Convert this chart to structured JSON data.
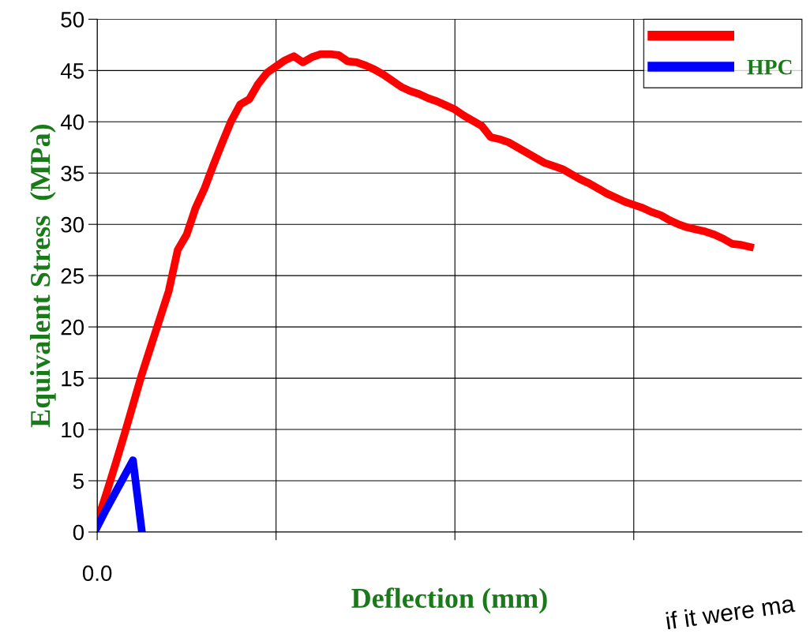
{
  "chart_data": {
    "type": "line",
    "xlabel": "Deflection (mm)",
    "ylabel": "Equivalent Stress  (MPa)",
    "categories": [
      "0.0",
      null,
      null,
      null,
      null,
      null,
      null,
      null,
      null,
      null,
      null,
      null,
      null,
      null,
      null,
      null,
      null,
      null,
      null,
      null,
      null,
      null,
      null,
      null,
      null,
      null,
      null,
      null,
      null,
      null,
      null,
      null,
      null,
      null,
      null,
      null,
      null,
      null,
      null,
      null,
      null,
      null,
      null,
      null,
      null,
      null,
      null,
      null,
      null,
      null,
      null,
      null,
      null,
      null,
      null,
      null,
      null,
      null,
      null,
      null,
      null,
      null,
      null,
      null,
      null,
      null,
      null,
      null,
      null,
      null,
      null,
      null,
      null,
      null,
      null,
      null,
      null,
      null,
      null
    ],
    "ylim": [
      0,
      50
    ],
    "yticks": [
      0,
      5,
      10,
      15,
      20,
      25,
      30,
      35,
      40,
      45,
      50
    ],
    "grid": true,
    "legend": "top right",
    "line_style": "solid",
    "marker": "none",
    "series": [
      {
        "color": "#ff0000",
        "values": [
          1.0,
          3.7,
          6.5,
          9.4,
          12.4,
          15.4,
          18.1,
          20.8,
          23.5,
          27.5,
          29.0,
          31.6,
          33.5,
          35.8,
          38.0,
          40.1,
          41.7,
          42.2,
          43.7,
          44.8,
          45.4,
          46.0,
          46.4,
          45.8,
          46.3,
          46.6,
          46.6,
          46.5,
          45.9,
          45.8,
          45.5,
          45.1,
          44.6,
          44.0,
          43.4,
          43.0,
          42.7,
          42.3,
          42.0,
          41.6,
          41.2,
          40.6,
          40.1,
          39.6,
          38.5,
          38.3,
          38.0,
          37.5,
          37.0,
          36.5,
          36.0,
          35.7,
          35.4,
          34.9,
          34.4,
          34.0,
          33.5,
          33.0,
          32.6,
          32.2,
          31.9,
          31.6,
          31.2,
          30.9,
          30.4,
          30.0,
          29.7,
          29.5,
          29.3,
          29.0,
          28.6,
          28.1,
          28.0,
          27.8,
          null,
          null,
          null,
          null,
          null
        ]
      },
      {
        "name": "HPC",
        "color": "#0000ff",
        "values": [
          0.5,
          2.2,
          3.8,
          5.4,
          7.0,
          0,
          null,
          null,
          null,
          null,
          null,
          null,
          null,
          null,
          null,
          null,
          null,
          null,
          null,
          null,
          null,
          null,
          null,
          null,
          null,
          null,
          null,
          null,
          null,
          null,
          null,
          null,
          null,
          null,
          null,
          null,
          null,
          null,
          null,
          null,
          null,
          null,
          null,
          null,
          null,
          null,
          null,
          null,
          null,
          null,
          null,
          null,
          null,
          null,
          null,
          null,
          null,
          null,
          null,
          null,
          null,
          null,
          null,
          null,
          null,
          null,
          null,
          null,
          null,
          null,
          null,
          null,
          null,
          null,
          null,
          null,
          null,
          null,
          null
        ]
      }
    ],
    "annotations": [
      "if it were ma"
    ]
  }
}
